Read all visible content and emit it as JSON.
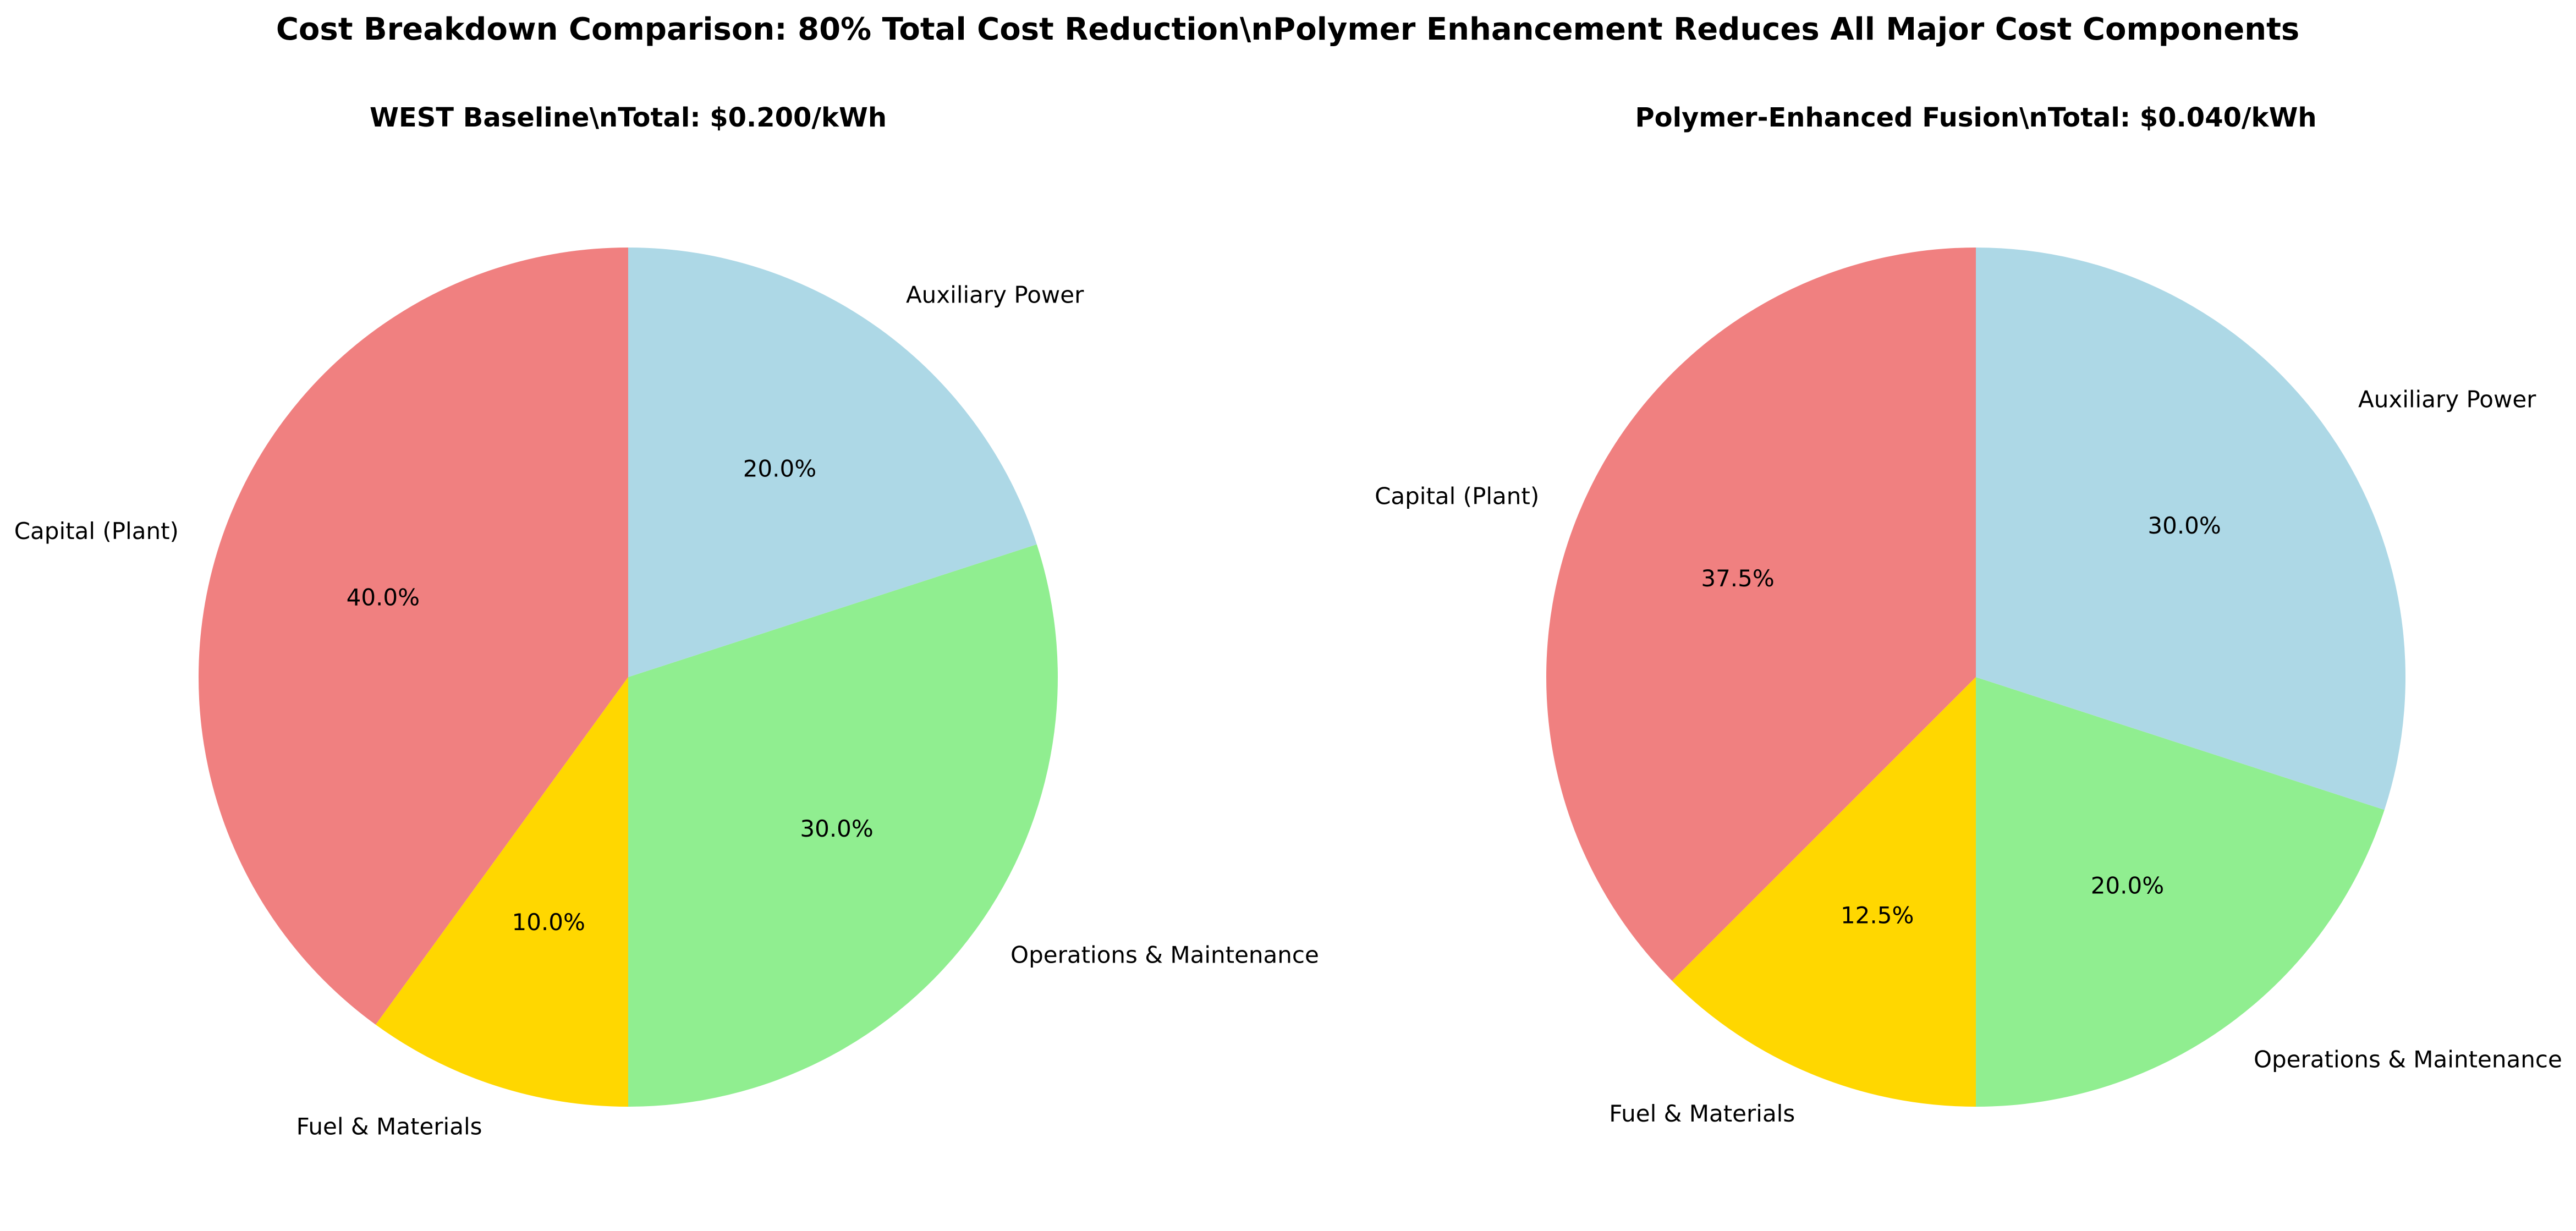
{
  "title": "Cost Breakdown Comparison: 80% Total Cost Reduction\\nPolymer Enhancement Reduces All Major Cost Components",
  "chart_data": [
    {
      "type": "pie",
      "title": "WEST Baseline\\nTotal: $0.200/kWh",
      "start_angle_deg": 90,
      "direction": "counterclockwise",
      "slices": [
        {
          "label": "Capital (Plant)",
          "value": 40.0,
          "pct_label": "40.0%",
          "color": "#f08080"
        },
        {
          "label": "Fuel & Materials",
          "value": 10.0,
          "pct_label": "10.0%",
          "color": "#ffd700"
        },
        {
          "label": "Operations & Maintenance",
          "value": 30.0,
          "pct_label": "30.0%",
          "color": "#90ee90"
        },
        {
          "label": "Auxiliary Power",
          "value": 20.0,
          "pct_label": "20.0%",
          "color": "#add8e6"
        }
      ]
    },
    {
      "type": "pie",
      "title": "Polymer-Enhanced Fusion\\nTotal: $0.040/kWh",
      "start_angle_deg": 90,
      "direction": "counterclockwise",
      "slices": [
        {
          "label": "Capital (Plant)",
          "value": 37.5,
          "pct_label": "37.5%",
          "color": "#f08080"
        },
        {
          "label": "Fuel & Materials",
          "value": 12.5,
          "pct_label": "12.5%",
          "color": "#ffd700"
        },
        {
          "label": "Operations & Maintenance",
          "value": 20.0,
          "pct_label": "20.0%",
          "color": "#90ee90"
        },
        {
          "label": "Auxiliary Power",
          "value": 30.0,
          "pct_label": "30.0%",
          "color": "#add8e6"
        }
      ]
    }
  ]
}
